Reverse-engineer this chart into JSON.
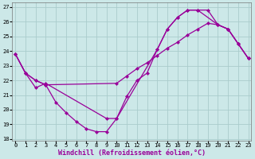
{
  "background_color": "#cce8e8",
  "grid_color": "#aacccc",
  "line_color": "#990099",
  "xlim": [
    0,
    23
  ],
  "ylim": [
    18,
    27
  ],
  "yticks": [
    18,
    19,
    20,
    21,
    22,
    23,
    24,
    25,
    26,
    27
  ],
  "xticks": [
    0,
    1,
    2,
    3,
    4,
    5,
    6,
    7,
    8,
    9,
    10,
    11,
    12,
    13,
    14,
    15,
    16,
    17,
    18,
    19,
    20,
    21,
    22,
    23
  ],
  "xlabel": "Windchill (Refroidissement éolien,°C)",
  "line1_x": [
    0,
    1,
    2,
    3,
    4,
    5,
    6,
    7,
    8,
    9,
    10,
    11,
    12,
    13,
    14,
    15,
    16,
    17,
    18,
    19,
    20,
    21,
    22,
    23
  ],
  "line1_y": [
    23.8,
    22.5,
    22.0,
    21.7,
    20.5,
    19.8,
    19.2,
    18.7,
    18.5,
    18.5,
    19.4,
    20.9,
    22.0,
    22.5,
    24.1,
    25.5,
    26.3,
    26.8,
    26.8,
    26.8,
    25.8,
    25.5,
    24.5,
    23.5
  ],
  "line2_x": [
    0,
    1,
    2,
    3,
    9,
    10,
    14,
    15,
    16,
    17,
    18,
    20,
    21,
    22,
    23
  ],
  "line2_y": [
    23.8,
    22.5,
    21.5,
    21.8,
    19.4,
    19.4,
    24.1,
    25.5,
    26.3,
    26.8,
    26.8,
    25.8,
    25.5,
    24.5,
    23.5
  ],
  "line3_x": [
    0,
    1,
    2,
    3,
    10,
    11,
    12,
    13,
    14,
    15,
    16,
    17,
    18,
    19,
    20,
    21,
    22,
    23
  ],
  "line3_y": [
    23.8,
    22.5,
    22.0,
    21.7,
    21.8,
    22.3,
    22.8,
    23.2,
    23.7,
    24.2,
    24.6,
    25.1,
    25.5,
    25.9,
    25.8,
    25.5,
    24.5,
    23.5
  ],
  "marker_size": 2.5,
  "line_width": 0.9,
  "tick_fontsize": 5,
  "xlabel_fontsize": 6
}
